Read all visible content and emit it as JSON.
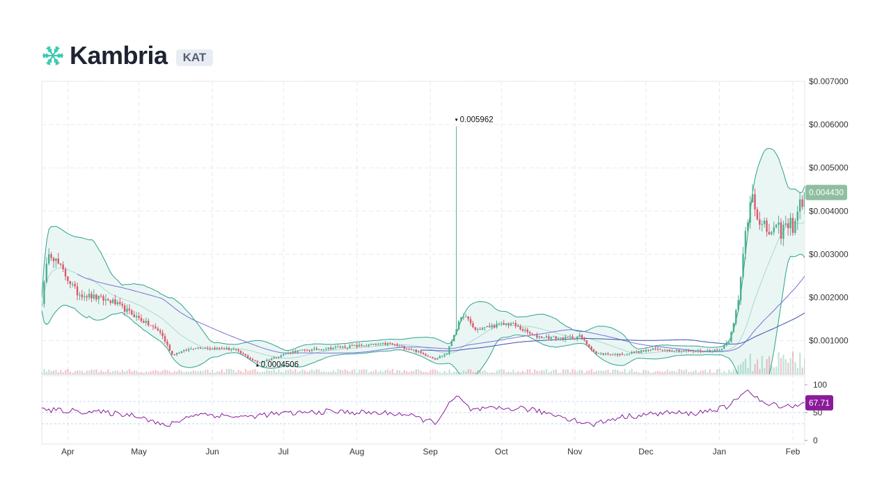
{
  "header": {
    "name": "Kambria",
    "ticker": "KAT",
    "logo_icon": "snowflake-icon",
    "logo_color": "#36c9b0"
  },
  "colors": {
    "up": "#4caf8e",
    "down": "#d9576b",
    "band_line": "#2aa18a",
    "band_fill": "#e6f4f2",
    "ma_short": "#7b6fd6",
    "ma_long": "#3b4fb0",
    "rsi": "#8a1c9a",
    "price_badge": "#8fbea1",
    "rsi_badge": "#8a1c9a"
  },
  "chart_data": {
    "type": "candlestick",
    "title": "",
    "x_axis": {
      "type": "date",
      "range": [
        "2018-03-21",
        "2019-02-06"
      ],
      "tick_labels": [
        "Apr",
        "May",
        "Jun",
        "Jul",
        "Aug",
        "Sep",
        "Oct",
        "Nov",
        "Dec",
        "Jan",
        "Feb"
      ],
      "tick_dates": [
        "2018-04-01",
        "2018-05-01",
        "2018-06-01",
        "2018-07-01",
        "2018-08-01",
        "2018-09-01",
        "2018-10-01",
        "2018-11-01",
        "2018-12-01",
        "2019-01-01",
        "2019-02-01"
      ]
    },
    "y_axis": {
      "range": [
        0.00022,
        0.007
      ],
      "tick_values": [
        0.001,
        0.002,
        0.003,
        0.004,
        0.005,
        0.006,
        0.007
      ],
      "tick_labels": [
        "$0.001000",
        "$0.002000",
        "$0.003000",
        "$0.004000",
        "$0.005000",
        "$0.006000",
        "$0.007000"
      ],
      "position": "right"
    },
    "grid": true,
    "price_keypoints": [
      [
        "2018-03-21",
        0.0019
      ],
      [
        "2018-03-24",
        0.0031
      ],
      [
        "2018-04-05",
        0.0021
      ],
      [
        "2018-04-20",
        0.0019
      ],
      [
        "2018-05-10",
        0.0012
      ],
      [
        "2018-05-15",
        0.00068
      ],
      [
        "2018-05-25",
        0.00085
      ],
      [
        "2018-06-10",
        0.0008
      ],
      [
        "2018-06-20",
        0.00049
      ],
      [
        "2018-06-24",
        0.00055
      ],
      [
        "2018-07-05",
        0.00075
      ],
      [
        "2018-07-25",
        0.00085
      ],
      [
        "2018-08-15",
        0.00093
      ],
      [
        "2018-08-25",
        0.00078
      ],
      [
        "2018-09-03",
        0.00058
      ],
      [
        "2018-09-08",
        0.0007
      ],
      [
        "2018-09-12",
        0.0013
      ],
      [
        "2018-09-15",
        0.0016
      ],
      [
        "2018-09-20",
        0.00125
      ],
      [
        "2018-09-28",
        0.00135
      ],
      [
        "2018-10-05",
        0.0014
      ],
      [
        "2018-10-15",
        0.0011
      ],
      [
        "2018-10-28",
        0.00105
      ],
      [
        "2018-11-03",
        0.0011
      ],
      [
        "2018-11-10",
        0.0007
      ],
      [
        "2018-11-20",
        0.00068
      ],
      [
        "2018-12-05",
        0.0008
      ],
      [
        "2018-12-20",
        0.00075
      ],
      [
        "2019-01-01",
        0.00078
      ],
      [
        "2019-01-05",
        0.001
      ],
      [
        "2019-01-09",
        0.0019
      ],
      [
        "2019-01-12",
        0.0035
      ],
      [
        "2019-01-15",
        0.0046
      ],
      [
        "2019-01-18",
        0.0036
      ],
      [
        "2019-01-25",
        0.0035
      ],
      [
        "2019-02-01",
        0.0037
      ],
      [
        "2019-02-06",
        0.00443
      ]
    ],
    "annotations": [
      {
        "label": "0.005962",
        "date": "2018-09-12",
        "value": 0.005962,
        "type": "high"
      },
      {
        "label": "0.0004506",
        "date": "2018-06-20",
        "value": 0.0004506,
        "type": "low"
      }
    ],
    "last_price": {
      "label": "0.004430",
      "value": 0.00443
    },
    "indicators": {
      "bollinger_bands": true,
      "moving_averages": 2,
      "volume": true
    },
    "rsi": {
      "range": [
        0,
        100
      ],
      "tick_labels": [
        "100",
        "50",
        "0"
      ],
      "tick_values": [
        100,
        50,
        0
      ],
      "reference_levels": [
        30,
        50,
        70
      ],
      "last_value": 67.71,
      "last_label": "67.71",
      "keypoints": [
        [
          "2018-03-21",
          55
        ],
        [
          "2018-04-10",
          52
        ],
        [
          "2018-05-01",
          45
        ],
        [
          "2018-05-12",
          25
        ],
        [
          "2018-05-25",
          48
        ],
        [
          "2018-06-15",
          42
        ],
        [
          "2018-06-25",
          47
        ],
        [
          "2018-07-20",
          52
        ],
        [
          "2018-08-20",
          48
        ],
        [
          "2018-09-03",
          32
        ],
        [
          "2018-09-12",
          80
        ],
        [
          "2018-09-18",
          55
        ],
        [
          "2018-10-10",
          58
        ],
        [
          "2018-10-25",
          45
        ],
        [
          "2018-11-08",
          28
        ],
        [
          "2018-11-20",
          42
        ],
        [
          "2018-12-10",
          50
        ],
        [
          "2018-12-20",
          48
        ],
        [
          "2019-01-05",
          60
        ],
        [
          "2019-01-12",
          92
        ],
        [
          "2019-01-20",
          65
        ],
        [
          "2019-02-01",
          62
        ],
        [
          "2019-02-06",
          67.71
        ]
      ]
    }
  }
}
